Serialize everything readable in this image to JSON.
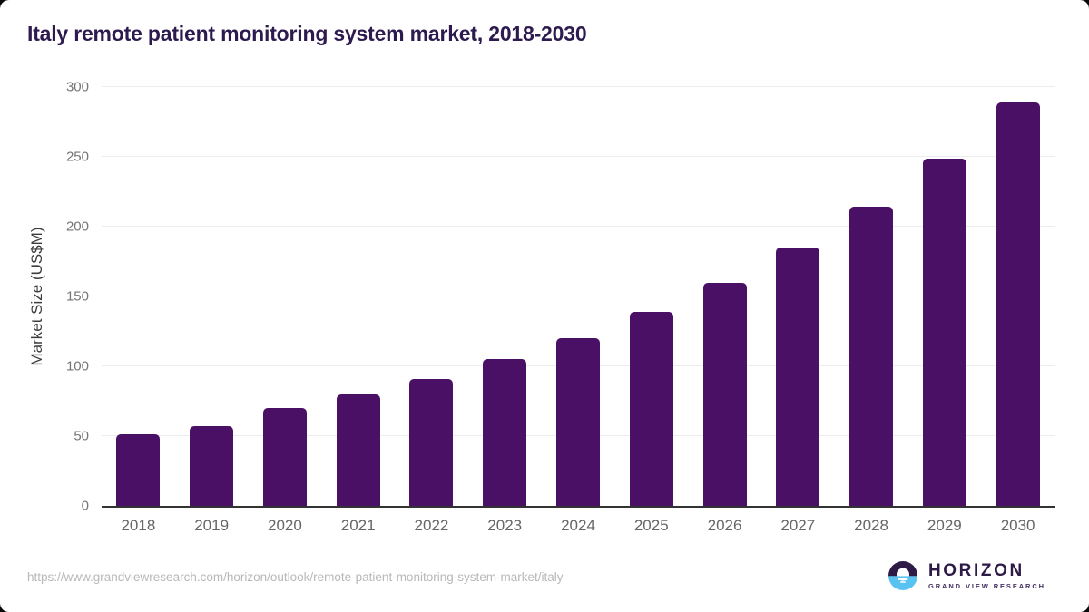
{
  "page": {
    "title": "Italy remote patient monitoring system market, 2018-2030",
    "source_url": "https://www.grandviewresearch.com/horizon/outlook/remote-patient-monitoring-system-market/italy"
  },
  "logo": {
    "name": "HORIZON",
    "subtitle": "GRAND VIEW RESEARCH",
    "icon": "horizon-sunset-icon",
    "dark_color": "#2e1a47",
    "blue_color": "#5ac2f0"
  },
  "colors": {
    "bar": "#4a1065",
    "title_text": "#2d1a4e",
    "gridline": "#ececec",
    "axis_line": "#333333",
    "y_tick_text": "#757575",
    "x_tick_text": "#666666",
    "y_axis_title_text": "#3d3d3d",
    "footer_url_text": "#b8b8b8",
    "background": "#ffffff"
  },
  "chart_data": {
    "type": "bar",
    "title": "Italy remote patient monitoring system market, 2018-2030",
    "categories": [
      "2018",
      "2019",
      "2020",
      "2021",
      "2022",
      "2023",
      "2024",
      "2025",
      "2026",
      "2027",
      "2028",
      "2029",
      "2030"
    ],
    "values": [
      51,
      57,
      70,
      80,
      91,
      105,
      120,
      139,
      160,
      185,
      214,
      249,
      289
    ],
    "xlabel": "",
    "ylabel": "Market Size (US$M)",
    "ylim": [
      0,
      300
    ],
    "yticks": [
      0,
      50,
      100,
      150,
      200,
      250,
      300
    ],
    "grid": "horizontal",
    "legend": "none",
    "bar_color": "#4a1065"
  }
}
